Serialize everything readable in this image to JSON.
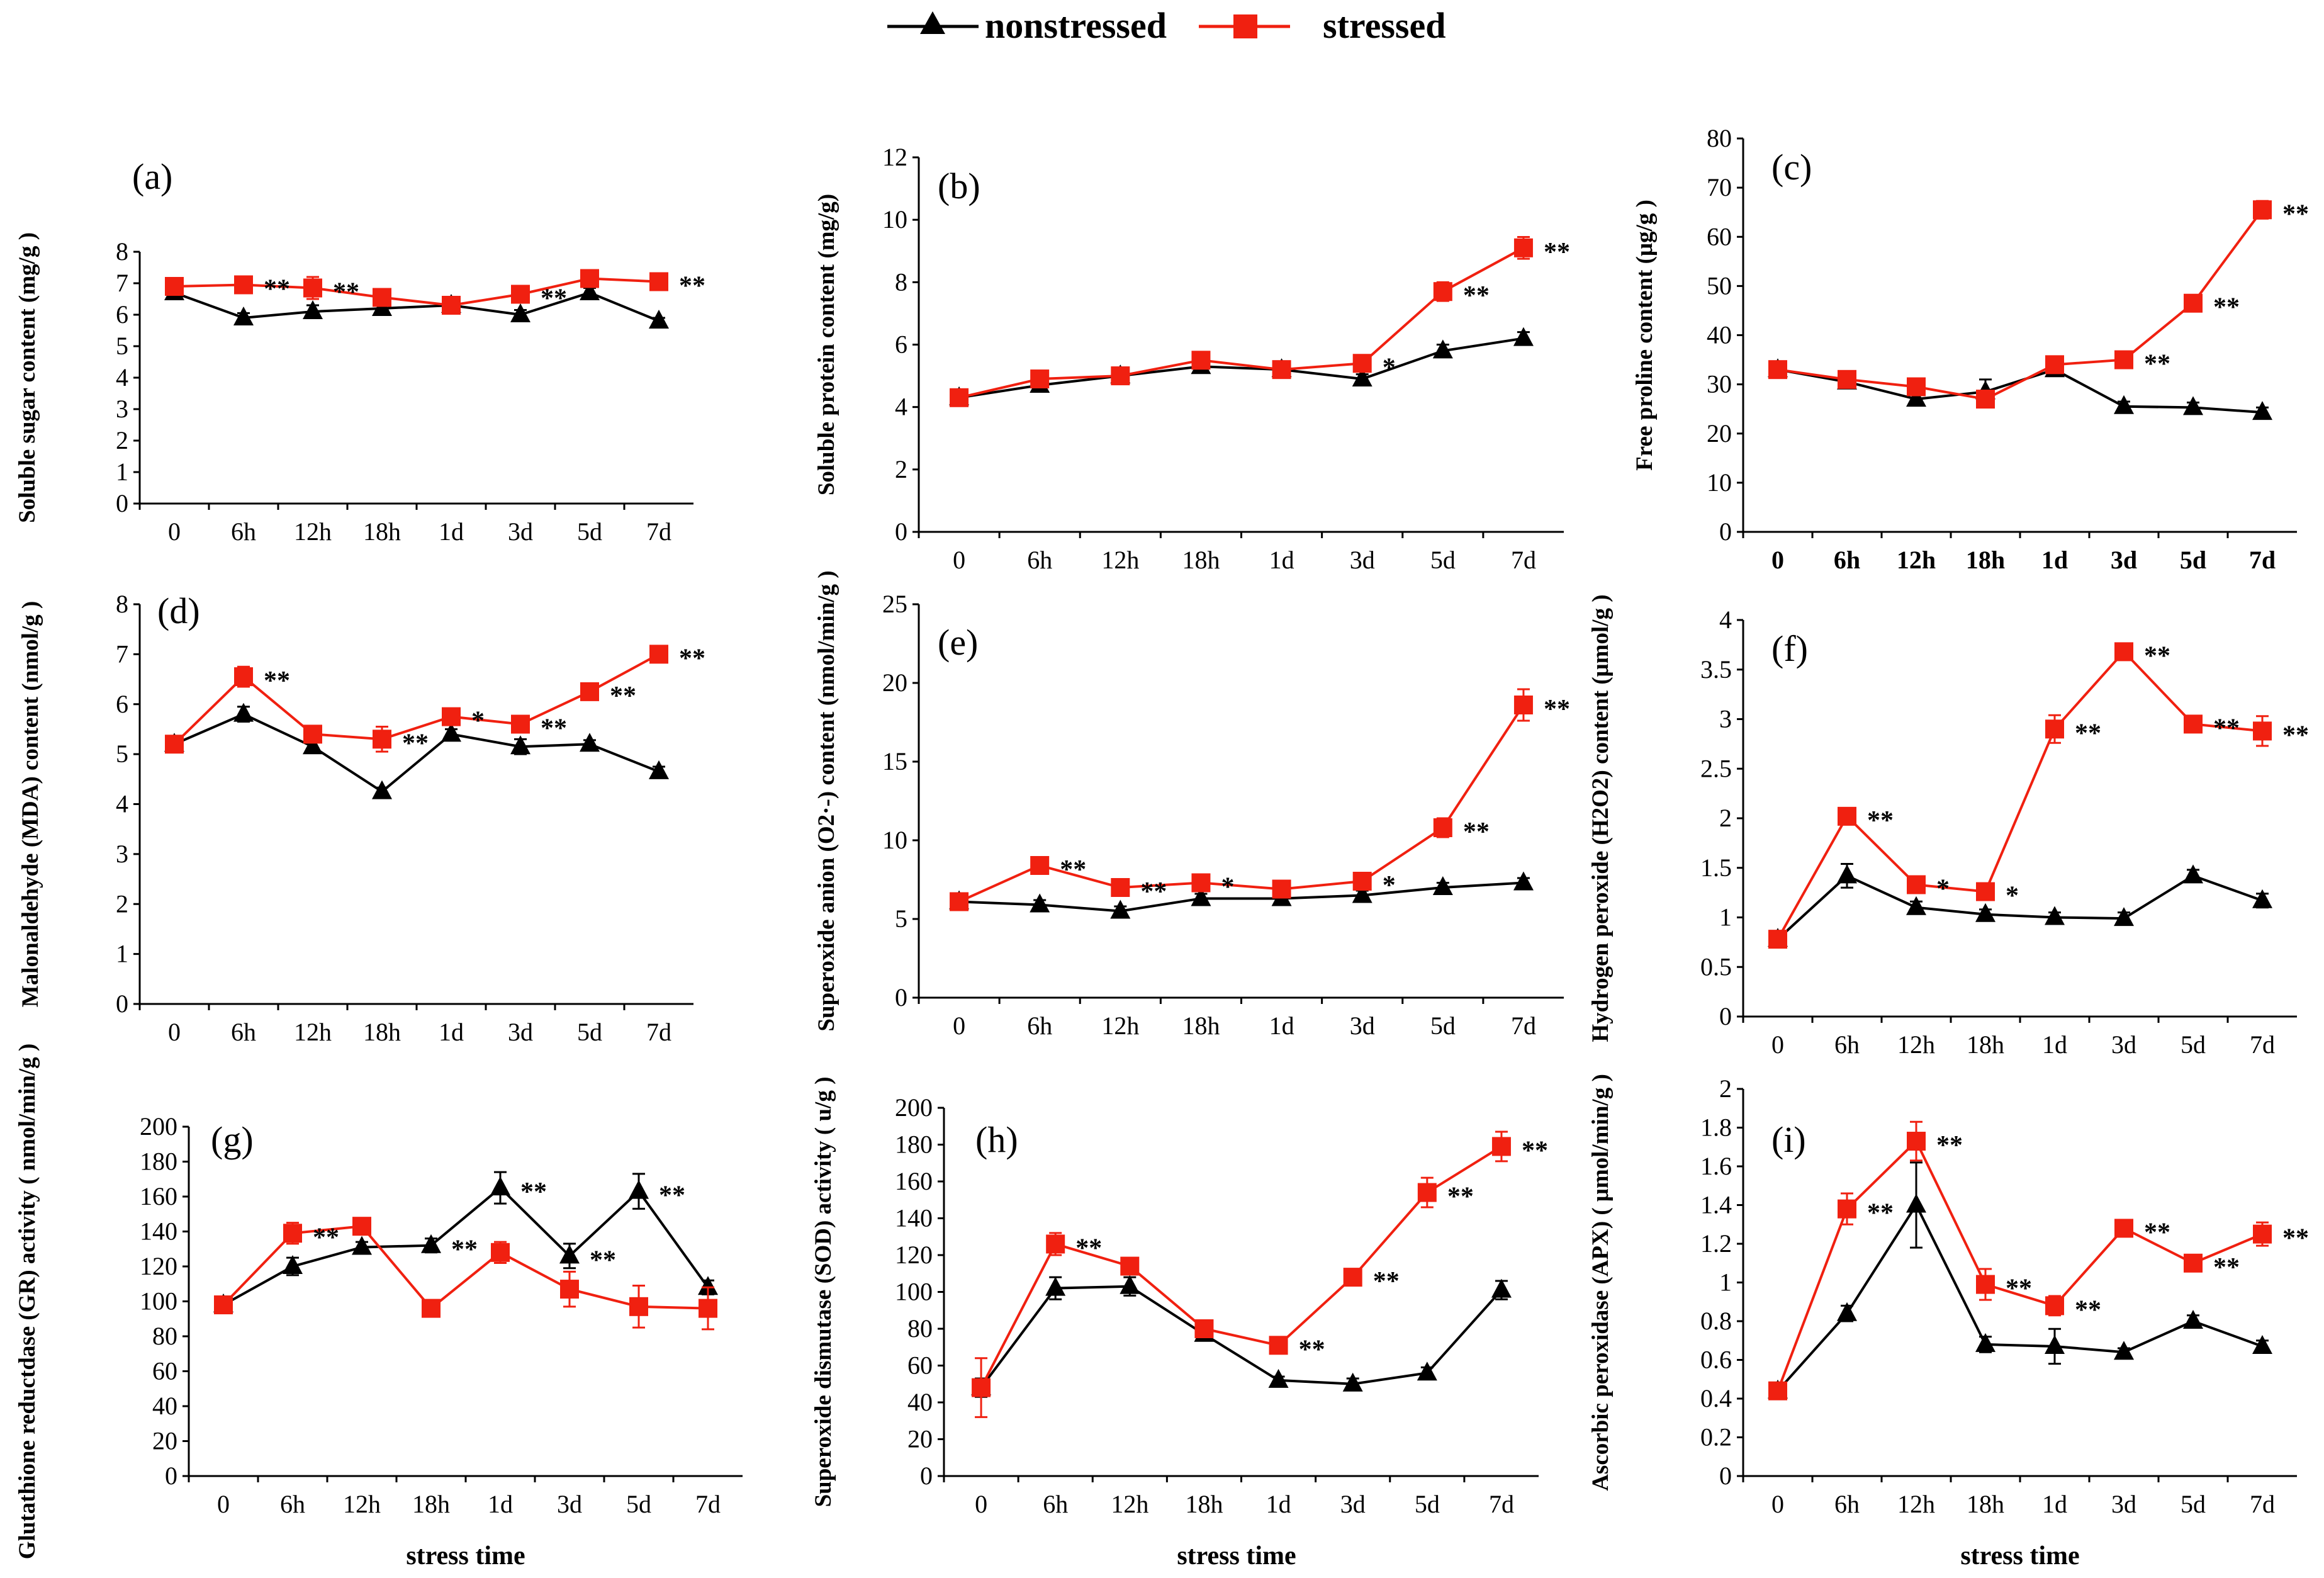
{
  "colors": {
    "nonstressed": "#000000",
    "stressed": "#f02010"
  },
  "legend": [
    {
      "label": "nonstressed",
      "marker": "triangle"
    },
    {
      "label": "stressed",
      "marker": "square"
    }
  ],
  "chart_data": [
    {
      "id": "a",
      "panel_label": "(a)",
      "type": "line",
      "ylabel": "Soluble sugar content (mg/g  )",
      "xlabel": "",
      "categories": [
        "0",
        "6h",
        "12h",
        "18h",
        "1d",
        "3d",
        "5d",
        "7d"
      ],
      "ylim": [
        0,
        8
      ],
      "yticks": [
        "0",
        "1",
        "2",
        "3",
        "4",
        "5",
        "6",
        "7",
        "8"
      ],
      "series": [
        {
          "name": "nonstressed",
          "values": [
            6.7,
            5.9,
            6.1,
            6.2,
            6.3,
            6.0,
            6.7,
            5.8
          ],
          "errors": [
            0.1,
            0.15,
            0.2,
            0.1,
            0.1,
            0.15,
            0.15,
            0.1
          ]
        },
        {
          "name": "stressed",
          "values": [
            6.9,
            6.95,
            6.85,
            6.55,
            6.3,
            6.65,
            7.15,
            7.05
          ],
          "errors": [
            0.15,
            0.1,
            0.35,
            0.2,
            0.1,
            0.2,
            0.15,
            0.15
          ]
        }
      ],
      "annotations": [
        {
          "index": 1,
          "text": "**"
        },
        {
          "index": 2,
          "text": "**"
        },
        {
          "index": 5,
          "text": "**"
        },
        {
          "index": 7,
          "text": "**"
        }
      ]
    },
    {
      "id": "b",
      "panel_label": "(b)",
      "type": "line",
      "ylabel": "Soluble protein content (mg/g)",
      "xlabel": "",
      "categories": [
        "0",
        "6h",
        "12h",
        "18h",
        "1d",
        "3d",
        "5d",
        "7d"
      ],
      "ylim": [
        0,
        12
      ],
      "yticks": [
        "0",
        "2",
        "4",
        "6",
        "8",
        "10",
        "12"
      ],
      "series": [
        {
          "name": "nonstressed",
          "values": [
            4.3,
            4.7,
            5.0,
            5.3,
            5.2,
            4.9,
            5.8,
            6.2
          ],
          "errors": [
            0.1,
            0.15,
            0.15,
            0.15,
            0.2,
            0.15,
            0.2,
            0.2
          ]
        },
        {
          "name": "stressed",
          "values": [
            4.3,
            4.9,
            5.0,
            5.5,
            5.2,
            5.4,
            7.7,
            9.1
          ],
          "errors": [
            0.1,
            0.15,
            0.1,
            0.15,
            0.2,
            0.15,
            0.3,
            0.35
          ]
        }
      ],
      "annotations": [
        {
          "index": 5,
          "text": "*"
        },
        {
          "index": 6,
          "text": "**"
        },
        {
          "index": 7,
          "text": "**"
        }
      ]
    },
    {
      "id": "c",
      "panel_label": "(c)",
      "type": "line",
      "ylabel": "Free proline content (μg/g )",
      "xlabel": "",
      "categories": [
        "0",
        "6h",
        "12h",
        "18h",
        "1d",
        "3d",
        "5d",
        "7d"
      ],
      "xtick_bold": true,
      "ylim": [
        0,
        80
      ],
      "yticks": [
        "0",
        "10",
        "20",
        "30",
        "40",
        "50",
        "60",
        "70",
        "80"
      ],
      "series": [
        {
          "name": "nonstressed",
          "values": [
            33,
            30.5,
            27,
            28.5,
            33,
            25.5,
            25.3,
            24.3
          ],
          "errors": [
            0.8,
            1,
            1.2,
            2.5,
            1,
            1,
            1,
            1
          ]
        },
        {
          "name": "stressed",
          "values": [
            33,
            31,
            29.5,
            27,
            34,
            35,
            46.5,
            65.5
          ],
          "errors": [
            0.8,
            1,
            1,
            1.5,
            1,
            1,
            1,
            1.8
          ]
        }
      ],
      "annotations": [
        {
          "index": 5,
          "text": "**"
        },
        {
          "index": 6,
          "text": "**"
        },
        {
          "index": 7,
          "text": "**"
        }
      ]
    },
    {
      "id": "d",
      "panel_label": "(d)",
      "type": "line",
      "ylabel": "Malonaldehyde  (MDA) content (nmol/g )",
      "xlabel": "",
      "categories": [
        "0",
        "6h",
        "12h",
        "18h",
        "1d",
        "3d",
        "5d",
        "7d"
      ],
      "ylim": [
        0,
        8
      ],
      "yticks": [
        "0",
        "1",
        "2",
        "3",
        "4",
        "5",
        "6",
        "7",
        "8"
      ],
      "series": [
        {
          "name": "nonstressed",
          "values": [
            5.2,
            5.8,
            5.15,
            4.25,
            5.4,
            5.15,
            5.2,
            4.65
          ],
          "errors": [
            0.1,
            0.15,
            0.1,
            0.08,
            0.1,
            0.15,
            0.08,
            0.1
          ]
        },
        {
          "name": "stressed",
          "values": [
            5.2,
            6.55,
            5.4,
            5.3,
            5.75,
            5.6,
            6.25,
            7.0
          ],
          "errors": [
            0.1,
            0.2,
            0.1,
            0.25,
            0.1,
            0.1,
            0.08,
            0.08
          ]
        }
      ],
      "annotations": [
        {
          "index": 1,
          "text": "**"
        },
        {
          "index": 3,
          "text": "**"
        },
        {
          "index": 4,
          "text": "*"
        },
        {
          "index": 5,
          "text": "**"
        },
        {
          "index": 6,
          "text": "**"
        },
        {
          "index": 7,
          "text": "**"
        }
      ]
    },
    {
      "id": "e",
      "panel_label": "(e)",
      "type": "line",
      "ylabel": "Superoxide anion (O2·-) content (nmol/min/g )",
      "xlabel": "",
      "categories": [
        "0",
        "6h",
        "12h",
        "18h",
        "1d",
        "3d",
        "5d",
        "7d"
      ],
      "ylim": [
        0,
        25
      ],
      "yticks": [
        "0",
        "5",
        "10",
        "15",
        "20",
        "25"
      ],
      "series": [
        {
          "name": "nonstressed",
          "values": [
            6.1,
            5.9,
            5.5,
            6.3,
            6.3,
            6.5,
            7.0,
            7.3
          ],
          "errors": [
            0.2,
            0.3,
            0.3,
            0.3,
            0.3,
            0.3,
            0.3,
            0.3
          ]
        },
        {
          "name": "stressed",
          "values": [
            6.1,
            8.4,
            7.0,
            7.3,
            6.9,
            7.4,
            10.8,
            18.6
          ],
          "errors": [
            0.2,
            0.3,
            0.3,
            0.3,
            0.3,
            0.3,
            0.6,
            1.0
          ]
        }
      ],
      "annotations": [
        {
          "index": 1,
          "text": "**"
        },
        {
          "index": 2,
          "text": "**"
        },
        {
          "index": 3,
          "text": "*"
        },
        {
          "index": 5,
          "text": "*"
        },
        {
          "index": 6,
          "text": "**"
        },
        {
          "index": 7,
          "text": "**"
        }
      ]
    },
    {
      "id": "f",
      "panel_label": "(f)",
      "type": "line",
      "ylabel": "Hydrogen peroxide (H2O2) content (μmol/g )",
      "xlabel": "",
      "categories": [
        "0",
        "6h",
        "12h",
        "18h",
        "1d",
        "3d",
        "5d",
        "7d"
      ],
      "ylim": [
        0,
        4
      ],
      "yticks": [
        "0",
        "0.5",
        "1",
        "1.5",
        "2",
        "2.5",
        "3",
        "3.5",
        "4"
      ],
      "series": [
        {
          "name": "nonstressed",
          "values": [
            0.78,
            1.42,
            1.1,
            1.03,
            1.0,
            0.99,
            1.42,
            1.17
          ],
          "errors": [
            0.04,
            0.12,
            0.06,
            0.05,
            0.05,
            0.06,
            0.06,
            0.07
          ]
        },
        {
          "name": "stressed",
          "values": [
            0.78,
            2.02,
            1.33,
            1.26,
            2.9,
            3.68,
            2.95,
            2.88
          ],
          "errors": [
            0.04,
            0.05,
            0.05,
            0.05,
            0.14,
            0.05,
            0.08,
            0.15
          ]
        }
      ],
      "annotations": [
        {
          "index": 1,
          "text": "**"
        },
        {
          "index": 2,
          "text": "*"
        },
        {
          "index": 3,
          "text": "*"
        },
        {
          "index": 4,
          "text": "**"
        },
        {
          "index": 5,
          "text": "**"
        },
        {
          "index": 6,
          "text": "**"
        },
        {
          "index": 7,
          "text": "**"
        }
      ]
    },
    {
      "id": "g",
      "panel_label": "(g)",
      "type": "line",
      "ylabel": "Glutathione reductdase (GR) activity ( nmol/min/g )",
      "xlabel": "stress time",
      "categories": [
        "0",
        "6h",
        "12h",
        "18h",
        "1d",
        "3d",
        "5d",
        "7d"
      ],
      "ylim": [
        0,
        200
      ],
      "yticks": [
        "0",
        "20",
        "40",
        "60",
        "80",
        "100",
        "120",
        "140",
        "160",
        "180",
        "200"
      ],
      "series": [
        {
          "name": "nonstressed",
          "values": [
            98,
            120,
            131,
            132,
            165,
            126,
            163,
            108
          ],
          "errors": [
            2,
            5,
            3,
            4,
            9,
            7,
            10,
            4
          ]
        },
        {
          "name": "stressed",
          "values": [
            98,
            139,
            143,
            96,
            128,
            107,
            97,
            96
          ],
          "errors": [
            2,
            6,
            3,
            2,
            6,
            10,
            12,
            12
          ]
        }
      ],
      "annotations": [
        {
          "index": 1,
          "text": "**"
        },
        {
          "index": 3,
          "text": "**"
        },
        {
          "index": 4,
          "text": "**"
        },
        {
          "index": 5,
          "text": "**"
        },
        {
          "index": 6,
          "text": "**"
        }
      ]
    },
    {
      "id": "h",
      "panel_label": "(h)",
      "type": "line",
      "ylabel": "Superoxide dismutase (SOD) activity ( u/g )",
      "xlabel": "stress time",
      "categories": [
        "0",
        "6h",
        "12h",
        "18h",
        "1d",
        "3d",
        "5d",
        "7d"
      ],
      "ylim": [
        0,
        200
      ],
      "yticks": [
        "0",
        "20",
        "40",
        "60",
        "80",
        "100",
        "120",
        "140",
        "160",
        "180",
        "200"
      ],
      "series": [
        {
          "name": "nonstressed",
          "values": [
            48,
            102,
            103,
            77,
            52,
            50,
            56,
            101
          ],
          "errors": [
            5,
            6,
            5,
            3,
            2,
            3,
            3,
            5
          ]
        },
        {
          "name": "stressed",
          "values": [
            48,
            126,
            114,
            80,
            71,
            108,
            154,
            179
          ],
          "errors": [
            16,
            6,
            4,
            3,
            2,
            2,
            8,
            8
          ]
        }
      ],
      "annotations": [
        {
          "index": 1,
          "text": "**"
        },
        {
          "index": 4,
          "text": "**"
        },
        {
          "index": 5,
          "text": "**"
        },
        {
          "index": 6,
          "text": "**"
        },
        {
          "index": 7,
          "text": "**"
        }
      ]
    },
    {
      "id": "i",
      "panel_label": "(i)",
      "type": "line",
      "ylabel": "Ascorbic peroxidase  (APX) ( μmol/min/g )",
      "xlabel": "stress time",
      "categories": [
        "0",
        "6h",
        "12h",
        "18h",
        "1d",
        "3d",
        "5d",
        "7d"
      ],
      "ylim": [
        0,
        2
      ],
      "yticks": [
        "0",
        "0.2",
        "0.4",
        "0.6",
        "0.8",
        "1",
        "1.2",
        "1.4",
        "1.6",
        "1.8",
        "2"
      ],
      "series": [
        {
          "name": "nonstressed",
          "values": [
            0.44,
            0.84,
            1.4,
            0.68,
            0.67,
            0.64,
            0.8,
            0.67
          ],
          "errors": [
            0.02,
            0.04,
            0.22,
            0.04,
            0.09,
            0.02,
            0.03,
            0.03
          ]
        },
        {
          "name": "stressed",
          "values": [
            0.44,
            1.38,
            1.73,
            0.99,
            0.88,
            1.28,
            1.1,
            1.25
          ],
          "errors": [
            0.02,
            0.08,
            0.1,
            0.08,
            0.05,
            0.03,
            0.03,
            0.06
          ]
        }
      ],
      "annotations": [
        {
          "index": 2,
          "text": "**"
        },
        {
          "index": 3,
          "text": "**"
        },
        {
          "index": 4,
          "text": "**"
        },
        {
          "index": 5,
          "text": "**"
        },
        {
          "index": 6,
          "text": "**"
        },
        {
          "index": 7,
          "text": "**"
        },
        {
          "index": 1,
          "text": "**"
        }
      ]
    }
  ]
}
